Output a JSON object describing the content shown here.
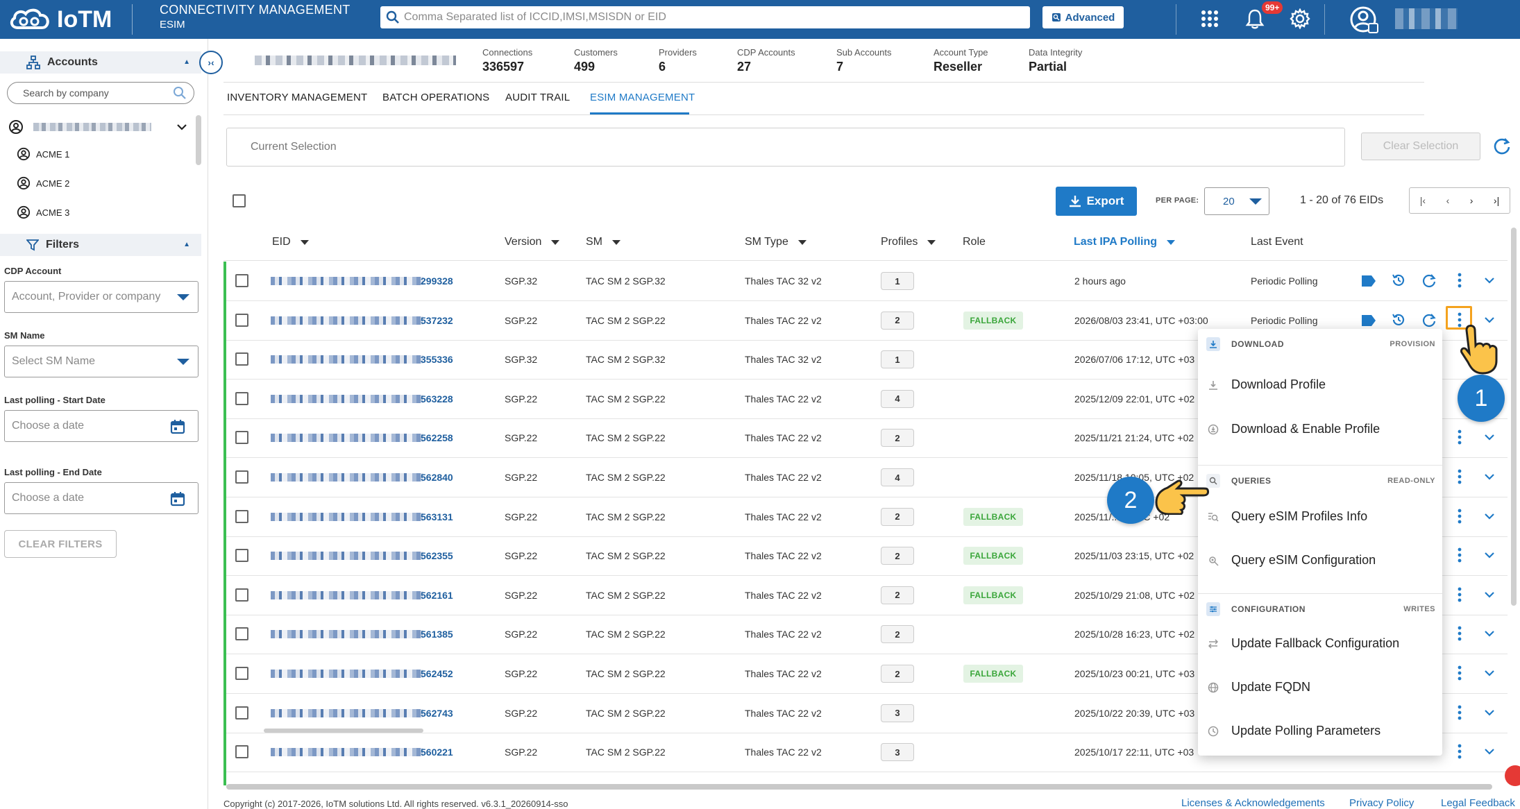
{
  "header": {
    "logo_text": "IoTM",
    "app_title": "CONNECTIVITY MANAGEMENT",
    "app_subtitle": "ESIM",
    "search_placeholder": "Comma Separated list of ICCID,IMSI,MSISDN or EID",
    "advanced_label": "Advanced",
    "notification_count": "99+",
    "icons": [
      "grid-icon",
      "bell-icon",
      "gear-icon",
      "user-avatar-icon"
    ]
  },
  "sidebar": {
    "accounts_title": "Accounts",
    "search_placeholder": "Search by company",
    "accounts": [
      "ACME 1",
      "ACME 2",
      "ACME 3"
    ],
    "filters_title": "Filters",
    "filters": {
      "cdp_label": "CDP Account",
      "cdp_placeholder": "Account, Provider or company",
      "sm_label": "SM Name",
      "sm_placeholder": "Select SM Name",
      "start_label": "Last polling - Start Date",
      "start_placeholder": "Choose a date",
      "end_label": "Last polling - End Date",
      "end_placeholder": "Choose a date",
      "clear_label": "CLEAR FILTERS"
    }
  },
  "stats": [
    {
      "label": "Connections",
      "value": "336597"
    },
    {
      "label": "Customers",
      "value": "499"
    },
    {
      "label": "Providers",
      "value": "6"
    },
    {
      "label": "CDP Accounts",
      "value": "27"
    },
    {
      "label": "Sub Accounts",
      "value": "7"
    },
    {
      "label": "Account Type",
      "value": "Reseller"
    },
    {
      "label": "Data Integrity",
      "value": "Partial"
    }
  ],
  "tabs": [
    "INVENTORY MANAGEMENT",
    "BATCH OPERATIONS",
    "AUDIT TRAIL",
    "ESIM MANAGEMENT"
  ],
  "active_tab": "ESIM MANAGEMENT",
  "selection": {
    "placeholder": "Current Selection",
    "clear_label": "Clear Selection"
  },
  "toolbar": {
    "export_label": "Export",
    "per_page_label": "PER PAGE:",
    "per_page_value": "20",
    "page_info": "1 - 20 of 76 EIDs"
  },
  "table": {
    "columns": [
      "EID",
      "Version",
      "SM",
      "SM Type",
      "Profiles",
      "Role",
      "Last IPA Polling",
      "Last Event"
    ],
    "rows": [
      {
        "eid": "299328",
        "version": "SGP.32",
        "sm": "TAC SM 2 SGP.32",
        "sm_type": "Thales TAC 32 v2",
        "profiles": "1",
        "role": "",
        "polling": "2 hours ago",
        "event": "Periodic Polling"
      },
      {
        "eid": "537232",
        "version": "SGP.22",
        "sm": "TAC SM 2 SGP.22",
        "sm_type": "Thales TAC 22 v2",
        "profiles": "2",
        "role": "FALLBACK",
        "polling": "2026/08/03 23:41, UTC +03:00",
        "event": "Periodic Polling"
      },
      {
        "eid": "355336",
        "version": "SGP.32",
        "sm": "TAC SM 2 SGP.32",
        "sm_type": "Thales TAC 32 v2",
        "profiles": "1",
        "role": "",
        "polling": "2026/07/06 17:12, UTC +03",
        "event": ""
      },
      {
        "eid": "563228",
        "version": "SGP.22",
        "sm": "TAC SM 2 SGP.22",
        "sm_type": "Thales TAC 22 v2",
        "profiles": "4",
        "role": "",
        "polling": "2025/12/09 22:01, UTC +02",
        "event": ""
      },
      {
        "eid": "562258",
        "version": "SGP.22",
        "sm": "TAC SM 2 SGP.22",
        "sm_type": "Thales TAC 22 v2",
        "profiles": "2",
        "role": "",
        "polling": "2025/11/21 21:24, UTC +02",
        "event": ""
      },
      {
        "eid": "562840",
        "version": "SGP.22",
        "sm": "TAC SM 2 SGP.22",
        "sm_type": "Thales TAC 22 v2",
        "profiles": "4",
        "role": "",
        "polling": "2025/11/18 10:05, UTC +02",
        "event": ""
      },
      {
        "eid": "563131",
        "version": "SGP.22",
        "sm": "TAC SM 2 SGP.22",
        "sm_type": "Thales TAC 22 v2",
        "profiles": "2",
        "role": "FALLBACK",
        "polling": "2025/11/...3, UTC +02",
        "event": ""
      },
      {
        "eid": "562355",
        "version": "SGP.22",
        "sm": "TAC SM 2 SGP.22",
        "sm_type": "Thales TAC 22 v2",
        "profiles": "2",
        "role": "FALLBACK",
        "polling": "2025/11/03 23:15, UTC +02",
        "event": ""
      },
      {
        "eid": "562161",
        "version": "SGP.22",
        "sm": "TAC SM 2 SGP.22",
        "sm_type": "Thales TAC 22 v2",
        "profiles": "2",
        "role": "FALLBACK",
        "polling": "2025/10/29 21:08, UTC +02",
        "event": ""
      },
      {
        "eid": "561385",
        "version": "SGP.22",
        "sm": "TAC SM 2 SGP.22",
        "sm_type": "Thales TAC 22 v2",
        "profiles": "2",
        "role": "",
        "polling": "2025/10/28 16:23, UTC +02",
        "event": ""
      },
      {
        "eid": "562452",
        "version": "SGP.22",
        "sm": "TAC SM 2 SGP.22",
        "sm_type": "Thales TAC 22 v2",
        "profiles": "2",
        "role": "FALLBACK",
        "polling": "2025/10/23 00:21, UTC +03",
        "event": ""
      },
      {
        "eid": "562743",
        "version": "SGP.22",
        "sm": "TAC SM 2 SGP.22",
        "sm_type": "Thales TAC 22 v2",
        "profiles": "3",
        "role": "",
        "polling": "2025/10/22 20:39, UTC +03",
        "event": ""
      },
      {
        "eid": "560221",
        "version": "SGP.22",
        "sm": "TAC SM 2 SGP.22",
        "sm_type": "Thales TAC 22 v2",
        "profiles": "3",
        "role": "",
        "polling": "2025/10/17 22:11, UTC +03",
        "event": ""
      }
    ]
  },
  "menu": {
    "sections": [
      {
        "name": "DOWNLOAD",
        "tag": "PROVISION",
        "items": [
          "Download Profile",
          "Download & Enable Profile"
        ]
      },
      {
        "name": "QUERIES",
        "tag": "READ-ONLY",
        "items": [
          "Query eSIM Profiles Info",
          "Query eSIM Configuration"
        ]
      },
      {
        "name": "CONFIGURATION",
        "tag": "WRITES",
        "items": [
          "Update Fallback Configuration",
          "Update FQDN",
          "Update Polling Parameters"
        ]
      }
    ]
  },
  "annotations": {
    "step1": "1",
    "step2": "2"
  },
  "footer": {
    "copyright": "Copyright (c) 2017-2026, IoTM solutions Ltd. All rights reserved. v6.3.1_20260914-sso",
    "links": [
      "Licenses & Acknowledgements",
      "Privacy Policy",
      "Legal",
      "Feedback"
    ]
  },
  "colors": {
    "primary": "#1f5f9f",
    "accent": "#1f7ac7",
    "active_row": "#3bbf52",
    "highlight": "#f4a21e",
    "fallback": "#3aa63a"
  }
}
